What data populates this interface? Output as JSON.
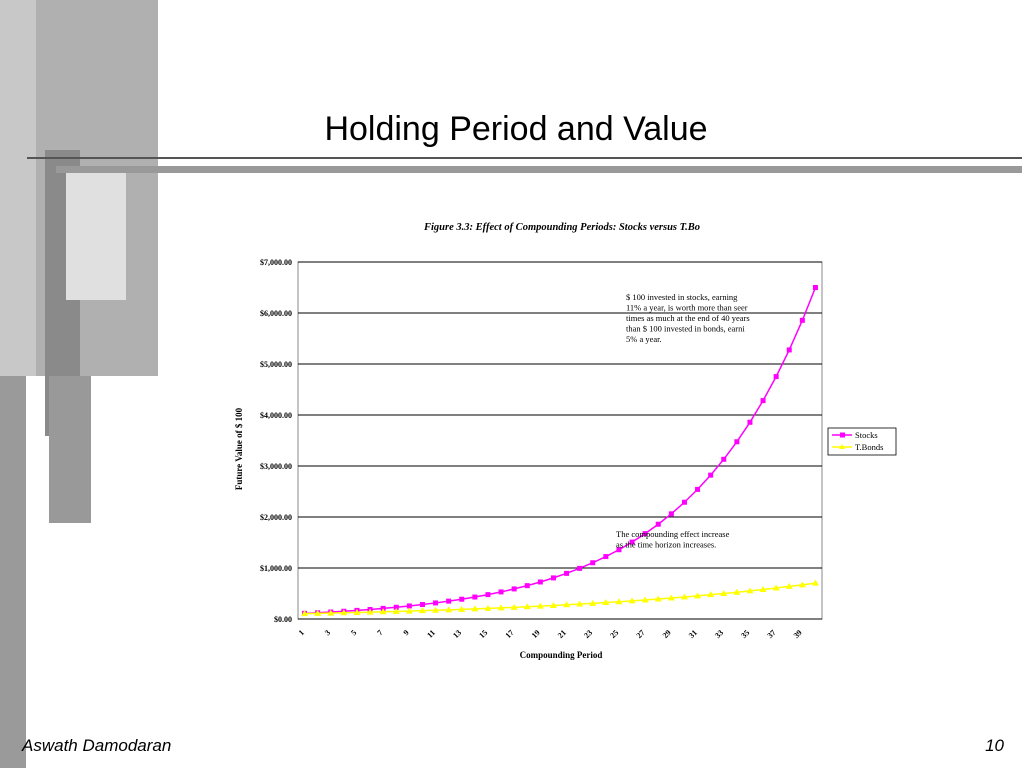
{
  "slide": {
    "title": "Holding Period and Value",
    "footer_left": "Aswath Damodaran",
    "page_number": "10"
  },
  "chart_data": {
    "type": "line",
    "title": "Figure 3.3: Effect of Compounding Periods: Stocks versus T.Bo",
    "x_label": "Compounding Period",
    "y_label": "Future Value of $ 100",
    "categories": [
      "1",
      null,
      "3",
      null,
      "5",
      null,
      "7",
      null,
      "9",
      null,
      "11",
      null,
      "13",
      null,
      "15",
      null,
      "17",
      null,
      "19",
      null,
      "21",
      null,
      "23",
      null,
      "25",
      null,
      "27",
      null,
      "29",
      null,
      "31",
      null,
      "33",
      null,
      "35",
      null,
      "37",
      null,
      "39",
      null
    ],
    "series": [
      {
        "name": "Stocks",
        "color": "#ff00ff",
        "marker": "square",
        "values": [
          111,
          123,
          137,
          152,
          169,
          187,
          208,
          230,
          256,
          284,
          315,
          350,
          388,
          431,
          478,
          531,
          590,
          654,
          726,
          806,
          895,
          993,
          1103,
          1224,
          1358,
          1508,
          1674,
          1858,
          2062,
          2289,
          2541,
          2821,
          3131,
          3475,
          3857,
          4282,
          4753,
          5276,
          5856,
          6500
        ]
      },
      {
        "name": "T.Bonds",
        "color": "#ffff00",
        "marker": "triangle",
        "values": [
          105,
          110,
          116,
          122,
          128,
          134,
          141,
          148,
          155,
          163,
          171,
          180,
          189,
          198,
          208,
          218,
          229,
          241,
          253,
          265,
          279,
          293,
          307,
          323,
          339,
          356,
          373,
          392,
          412,
          432,
          454,
          477,
          500,
          525,
          552,
          579,
          608,
          639,
          670,
          704
        ]
      }
    ],
    "ylim": [
      0,
      7000
    ],
    "yticks": [
      {
        "value": 0,
        "label": "$0.00"
      },
      {
        "value": 1000,
        "label": "$1,000.00"
      },
      {
        "value": 2000,
        "label": "$2,000.00"
      },
      {
        "value": 3000,
        "label": "$3,000.00"
      },
      {
        "value": 4000,
        "label": "$4,000.00"
      },
      {
        "value": 5000,
        "label": "$5,000.00"
      },
      {
        "value": 6000,
        "label": "$6,000.00"
      },
      {
        "value": 7000,
        "label": "$7,000.00"
      }
    ],
    "grid": true,
    "legend": "right",
    "annotations": [
      [
        "$ 100 invested in stocks, earning",
        "11% a year, is worth more than seer",
        "times as much at the end of 40 years",
        "than $ 100 invested in bonds, earni",
        "5% a year."
      ],
      [
        "The compounding effect increase",
        "as the time horizon increases."
      ]
    ]
  }
}
